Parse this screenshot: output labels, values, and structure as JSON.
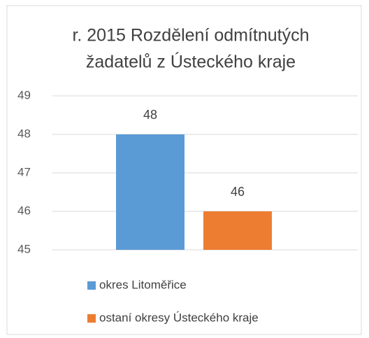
{
  "chart_data": {
    "type": "bar",
    "title": [
      "r. 2015 Rozdělení odmítnutých",
      "žadatelů z Ústeckého kraje"
    ],
    "categories": [
      null
    ],
    "series": [
      {
        "name": "okres Litoměřice",
        "color": "#5b9bd5",
        "values": [
          48
        ]
      },
      {
        "name": "ostaní okresy Ústeckého kraje",
        "color": "#ed7d31",
        "values": [
          46
        ]
      }
    ],
    "ylim": [
      45,
      49
    ],
    "yticks": [
      45,
      46,
      47,
      48,
      49
    ],
    "grid": true,
    "legend": "bottom"
  }
}
